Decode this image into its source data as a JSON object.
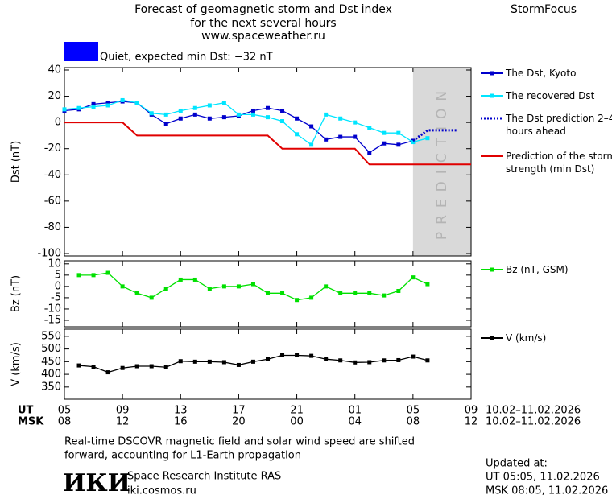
{
  "header": {
    "title_lines": [
      "Forecast of geomagnetic storm and Dst index",
      "for the next several hours",
      "www.spaceweather.ru"
    ],
    "brand": "StormFocus",
    "status": {
      "color": "#0000ff",
      "text": "Quiet, expected min Dst: −32 nT"
    }
  },
  "chart_data": [
    {
      "type": "line",
      "y_label": "Dst (nT)",
      "xlim": [
        0,
        28
      ],
      "ylim": [
        -100,
        40
      ],
      "yticks": [
        40,
        20,
        0,
        -20,
        -40,
        -60,
        -80,
        -100
      ],
      "prediction_zone": {
        "x": [
          24,
          28
        ],
        "label": "PREDICTION",
        "color": "#d9d9d9"
      },
      "series": [
        {
          "name": "The Dst, Kyoto",
          "color": "#0000cc",
          "marker": "square",
          "x": [
            0,
            1,
            2,
            3,
            4,
            5,
            6,
            7,
            8,
            9,
            10,
            11,
            12,
            13,
            14,
            15,
            16,
            17,
            18,
            19,
            20,
            21,
            22,
            23,
            24
          ],
          "values": [
            9,
            10,
            14,
            15,
            16,
            15,
            6,
            -1,
            3,
            6,
            3,
            4,
            5,
            9,
            11,
            9,
            3,
            -3,
            -13,
            -11,
            -11,
            -23,
            -16,
            -17,
            -14
          ]
        },
        {
          "name": "The recovered Dst",
          "color": "#00e5ff",
          "marker": "square",
          "x": [
            0,
            1,
            2,
            3,
            4,
            5,
            6,
            7,
            8,
            9,
            10,
            11,
            12,
            13,
            14,
            15,
            16,
            17,
            18,
            19,
            20,
            21,
            22,
            23,
            24,
            25
          ],
          "values": [
            10,
            11,
            12,
            13,
            17,
            15,
            7,
            6,
            9,
            11,
            13,
            15,
            6,
            6,
            4,
            1,
            -9,
            -17,
            6,
            3,
            0,
            -4,
            -8,
            -8,
            -15,
            -12
          ]
        },
        {
          "name": "The Dst prediction 2–4 hours ahead",
          "color": "#0000cc",
          "style": "dotted",
          "x": [
            24,
            25,
            26,
            27
          ],
          "values": [
            -14,
            -6,
            -6,
            -6
          ]
        },
        {
          "name": "Prediction of the storm strength (min Dst)",
          "color": "#e00000",
          "x": [
            0,
            4,
            5,
            14,
            15,
            20,
            21,
            28
          ],
          "values": [
            0,
            0,
            -10,
            -10,
            -20,
            -20,
            -32,
            -32
          ]
        }
      ]
    },
    {
      "type": "line",
      "y_label": "Bz (nT)",
      "xlim": [
        0,
        28
      ],
      "ylim": [
        -17.5,
        11
      ],
      "yticks": [
        10,
        5,
        0,
        -5,
        -10,
        -15
      ],
      "series": [
        {
          "name": "Bz (nT, GSM)",
          "color": "#00e000",
          "marker": "square",
          "x": [
            1,
            2,
            3,
            4,
            5,
            6,
            7,
            8,
            9,
            10,
            11,
            12,
            13,
            14,
            15,
            16,
            17,
            18,
            19,
            20,
            21,
            22,
            23,
            24,
            25
          ],
          "values": [
            5,
            5,
            6,
            0,
            -3,
            -5,
            -1,
            3,
            3,
            -1,
            0,
            0,
            1,
            -3,
            -3,
            -6,
            -5,
            0,
            -3,
            -3,
            -3,
            -4,
            -2,
            4,
            1
          ]
        }
      ]
    },
    {
      "type": "line",
      "y_label": "V (km/s)",
      "xlim": [
        0,
        28
      ],
      "ylim": [
        305,
        575
      ],
      "yticks": [
        350,
        400,
        450,
        500,
        550
      ],
      "series": [
        {
          "name": "V (km/s)",
          "color": "#000000",
          "marker": "square",
          "x": [
            1,
            2,
            3,
            4,
            5,
            6,
            7,
            8,
            9,
            10,
            11,
            12,
            13,
            14,
            15,
            16,
            17,
            18,
            19,
            20,
            21,
            22,
            23,
            24,
            25
          ],
          "values": [
            435,
            430,
            408,
            425,
            432,
            432,
            428,
            452,
            450,
            450,
            448,
            437,
            450,
            460,
            475,
            475,
            473,
            460,
            455,
            447,
            448,
            455,
            456,
            470,
            455
          ]
        }
      ],
      "x_label": "UT",
      "xticks": [
        {
          "value": 0,
          "label": "05"
        },
        {
          "value": 4,
          "label": "09"
        },
        {
          "value": 8,
          "label": "13"
        },
        {
          "value": 12,
          "label": "17"
        },
        {
          "value": 16,
          "label": "21"
        },
        {
          "value": 20,
          "label": "01"
        },
        {
          "value": 24,
          "label": "05"
        },
        {
          "value": 28,
          "label": "09"
        }
      ],
      "x2_label": "MSK",
      "x2ticks": [
        {
          "value": 0,
          "label": "08"
        },
        {
          "value": 4,
          "label": "12"
        },
        {
          "value": 8,
          "label": "16"
        },
        {
          "value": 12,
          "label": "20"
        },
        {
          "value": 16,
          "label": "00"
        },
        {
          "value": 20,
          "label": "04"
        },
        {
          "value": 24,
          "label": "08"
        },
        {
          "value": 28,
          "label": "12"
        }
      ],
      "x_date_range": "10.02–11.02.2026",
      "x2_date_range": "10.02–11.02.2026"
    }
  ],
  "footer": {
    "note_lines": [
      "Real-time DSCOVR magnetic field and solar wind speed are shifted",
      "forward, accounting for L1-Earth propagation"
    ],
    "logo": "ИКИ",
    "institute": "Space Research Institute RAS",
    "website": "iki.cosmos.ru",
    "updated_label": "Updated at:",
    "updated_ut": "UT  05:05, 11.02.2026",
    "updated_msk": "MSK 08:05, 11.02.2026"
  }
}
